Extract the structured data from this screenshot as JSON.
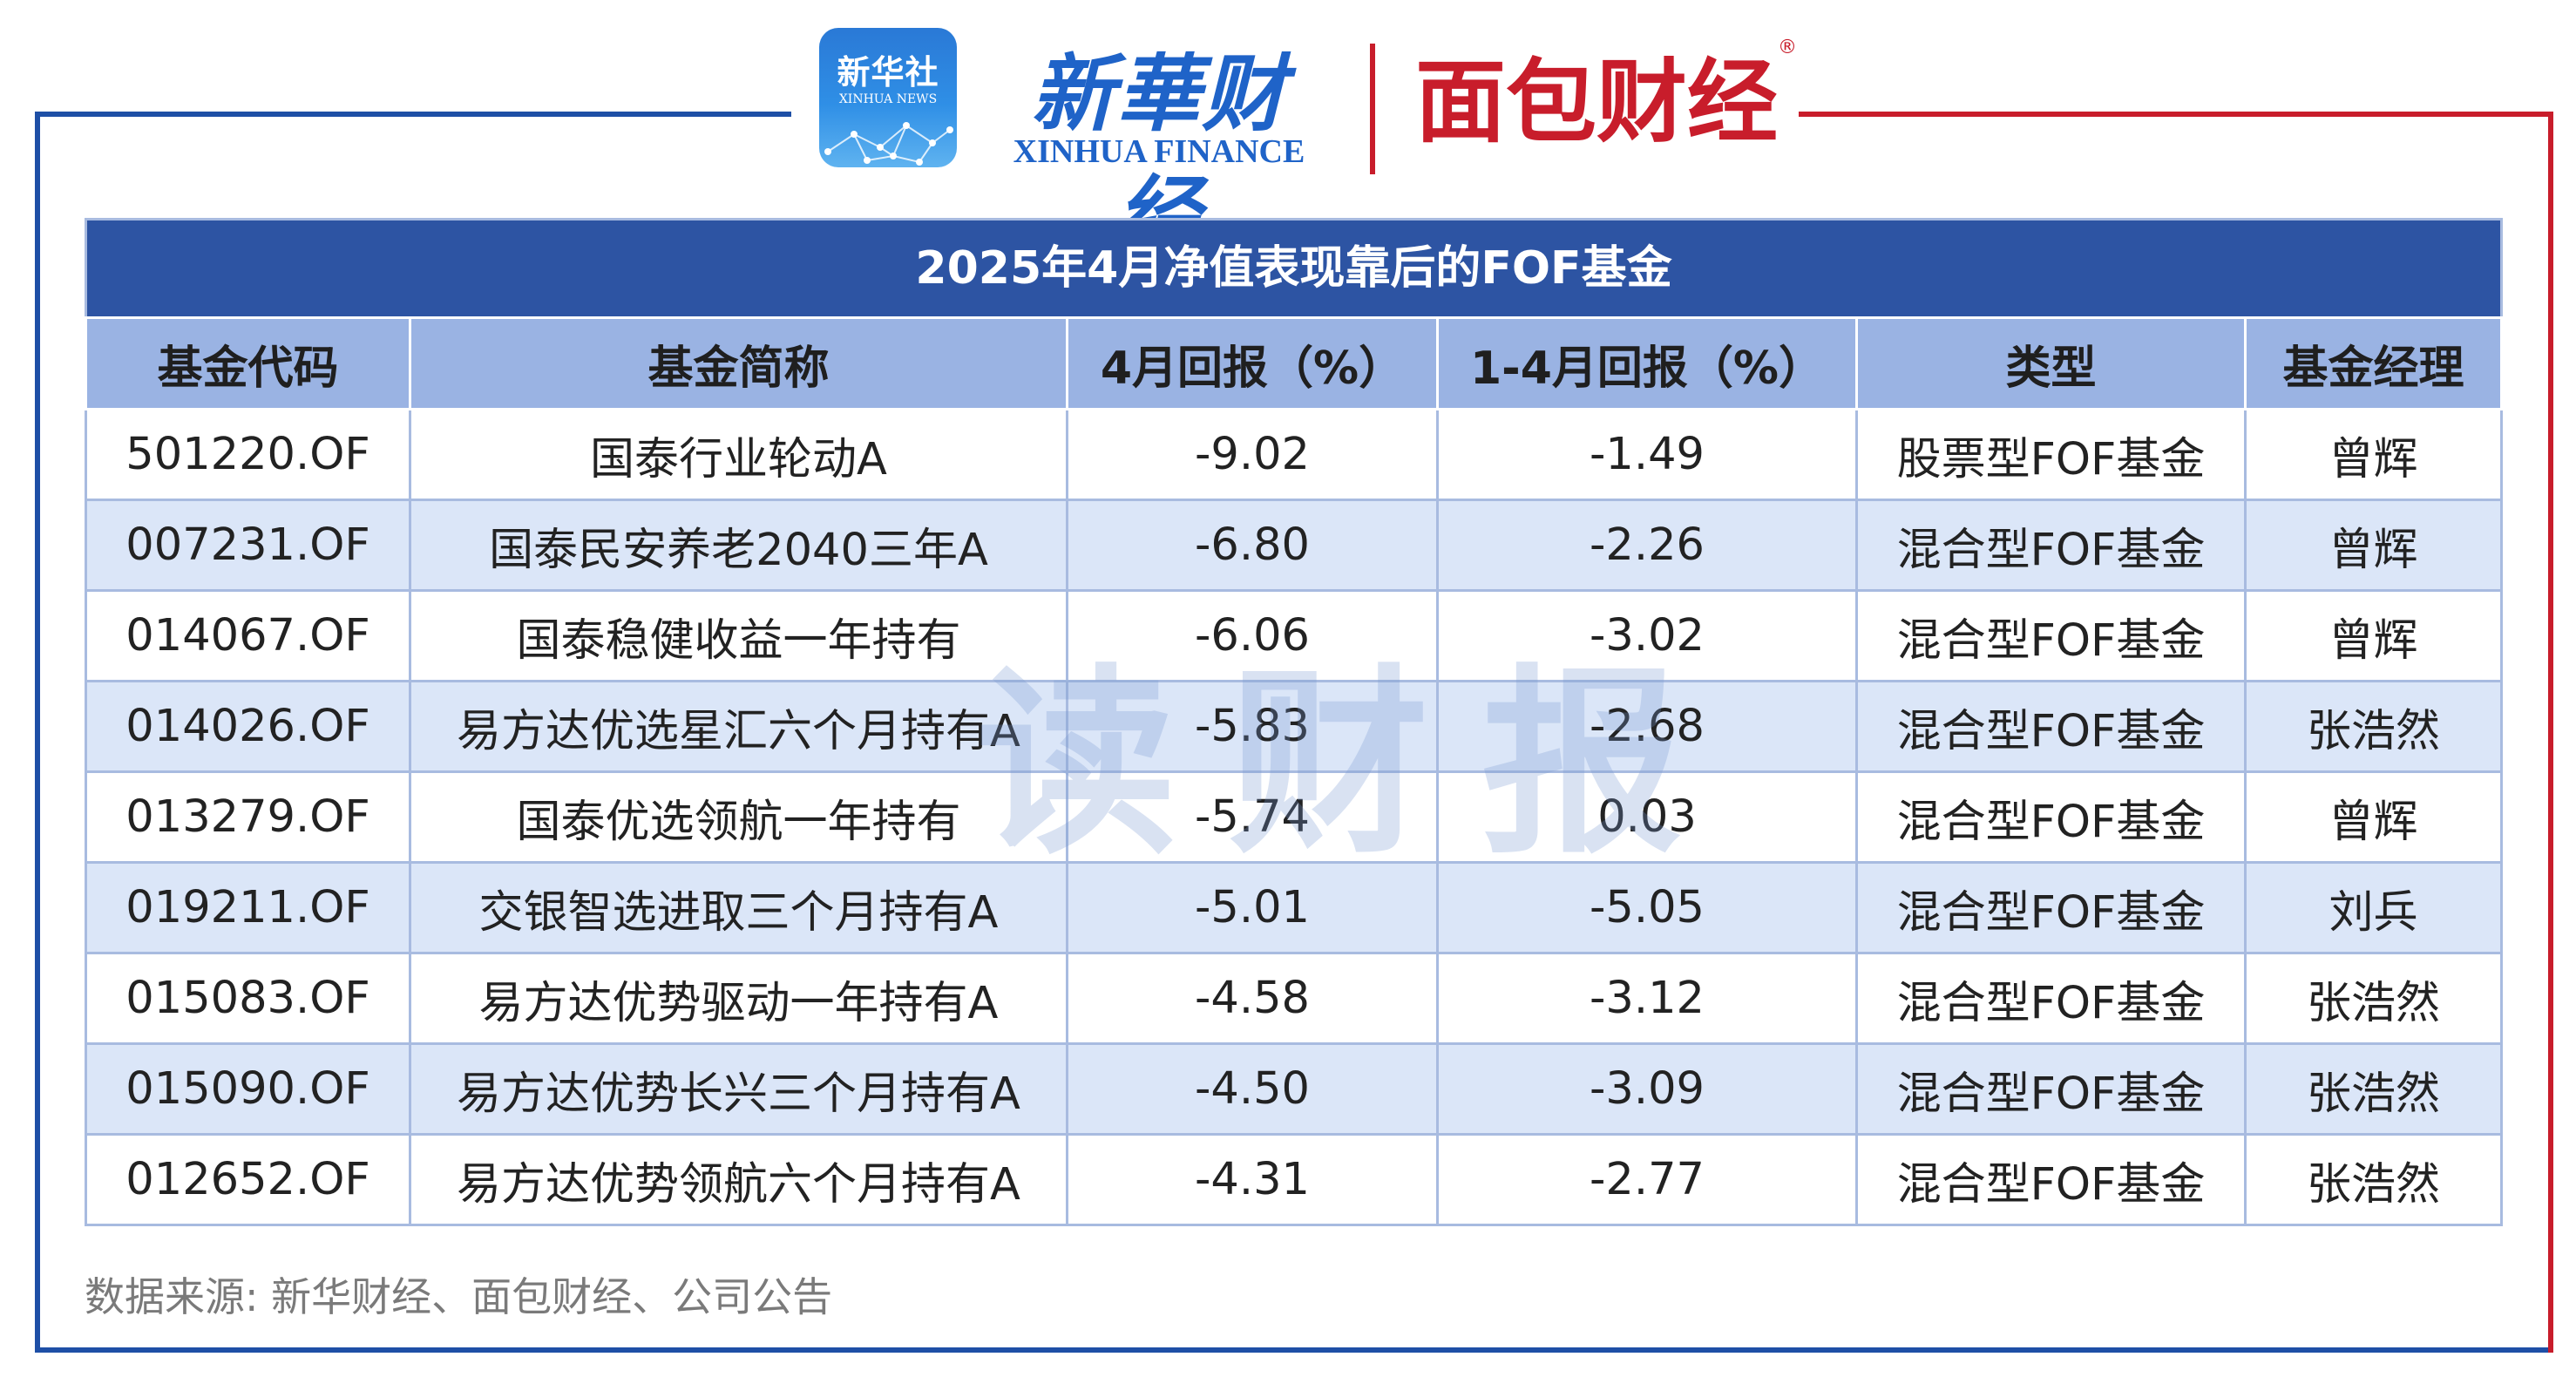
{
  "brand": {
    "xinhua_icon_text": "新华社",
    "xinhua_icon_subtext": "XINHUA NEWS",
    "xinhua_cn": "新華财经",
    "xinhua_en": "XINHUA FINANCE",
    "mianbao": "面包财经",
    "registered_mark": "®",
    "colors": {
      "blue": "#1f63c8",
      "red": "#c81d2b",
      "header_blue": "#2d54a3"
    }
  },
  "table": {
    "title": "2025年4月净值表现靠后的FOF基金",
    "columns": [
      "基金代码",
      "基金简称",
      "4月回报（%）",
      "1-4月回报（%）",
      "类型",
      "基金经理"
    ],
    "rows": [
      [
        "501220.OF",
        "国泰行业轮动A",
        "-9.02",
        "-1.49",
        "股票型FOF基金",
        "曾辉"
      ],
      [
        "007231.OF",
        "国泰民安养老2040三年A",
        "-6.80",
        "-2.26",
        "混合型FOF基金",
        "曾辉"
      ],
      [
        "014067.OF",
        "国泰稳健收益一年持有",
        "-6.06",
        "-3.02",
        "混合型FOF基金",
        "曾辉"
      ],
      [
        "014026.OF",
        "易方达优选星汇六个月持有A",
        "-5.83",
        "-2.68",
        "混合型FOF基金",
        "张浩然"
      ],
      [
        "013279.OF",
        "国泰优选领航一年持有",
        "-5.74",
        "0.03",
        "混合型FOF基金",
        "曾辉"
      ],
      [
        "019211.OF",
        "交银智选进取三个月持有A",
        "-5.01",
        "-5.05",
        "混合型FOF基金",
        "刘兵"
      ],
      [
        "015083.OF",
        "易方达优势驱动一年持有A",
        "-4.58",
        "-3.12",
        "混合型FOF基金",
        "张浩然"
      ],
      [
        "015090.OF",
        "易方达优势长兴三个月持有A",
        "-4.50",
        "-3.09",
        "混合型FOF基金",
        "张浩然"
      ],
      [
        "012652.OF",
        "易方达优势领航六个月持有A",
        "-4.31",
        "-2.77",
        "混合型FOF基金",
        "张浩然"
      ]
    ]
  },
  "watermark": "读财报",
  "source_note": "数据来源: 新华财经、面包财经、公司公告"
}
